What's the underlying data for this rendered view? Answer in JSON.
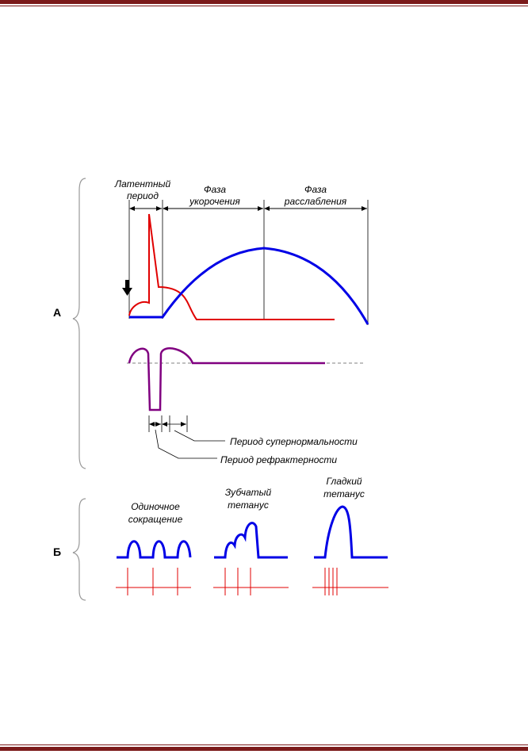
{
  "page_decor": {
    "rule_color": "#7b1a1a"
  },
  "colors": {
    "contraction": "#0000e6",
    "action_potential": "#e00000",
    "excitability": "#800080",
    "baseline": "#808080",
    "stimulus": "#e00000"
  },
  "section_a": {
    "label": "А",
    "phases": {
      "latent_line1": "Латентный",
      "latent_line2": "период",
      "shortening_line1": "Фаза",
      "shortening_line2": "укорочения",
      "relaxation_line1": "Фаза",
      "relaxation_line2": "расслабления"
    },
    "annotations": {
      "supernormal": "Период супернормальности",
      "refractory": "Период рефрактерности"
    },
    "stimulus_marker": "arrow-down-icon"
  },
  "section_b": {
    "label": "Б",
    "single_line1": "Одиночное",
    "single_line2": "сокращение",
    "serrated_line1": "Зубчатый",
    "serrated_line2": "тетанус",
    "smooth_line1": "Гладкий",
    "smooth_line2": "тетанус"
  }
}
